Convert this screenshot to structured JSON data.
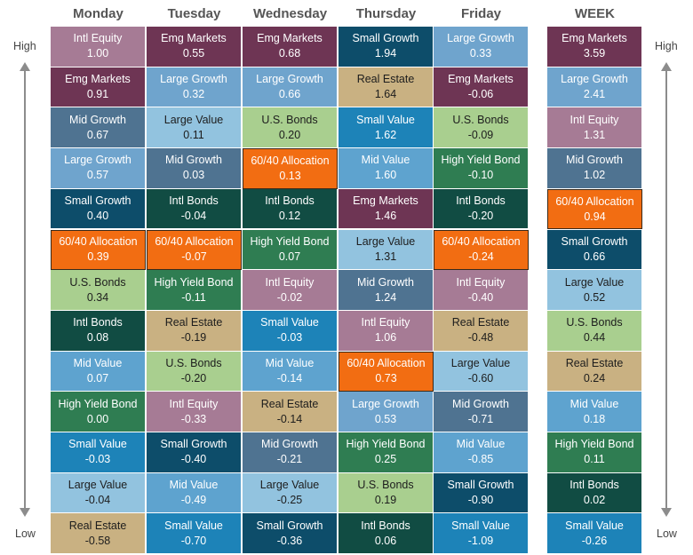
{
  "side": {
    "high": "High",
    "low": "Low"
  },
  "asset_colors": {
    "Intl Equity": "#a67b95",
    "Emg Markets": "#6e3554",
    "Mid Growth": "#4f7391",
    "Large Growth": "#6fa4cd",
    "Small Growth": "#0d4d6a",
    "60/40 Allocation": "#f26d12",
    "U.S. Bonds": "#a9cf8f",
    "Intl Bonds": "#114c43",
    "Mid Value": "#5ea3cf",
    "High Yield Bond": "#2f7d52",
    "Small Value": "#1d83b8",
    "Large Value": "#92c3df",
    "Real Estate": "#c9b182"
  },
  "chart_data": {
    "type": "table",
    "columns": [
      "Monday",
      "Tuesday",
      "Wednesday",
      "Thursday",
      "Friday",
      "WEEK"
    ],
    "rows": [
      [
        {
          "name": "Intl Equity",
          "value": "1.00"
        },
        {
          "name": "Emg Markets",
          "value": "0.55"
        },
        {
          "name": "Emg Markets",
          "value": "0.68"
        },
        {
          "name": "Small Growth",
          "value": "1.94"
        },
        {
          "name": "Large Growth",
          "value": "0.33"
        },
        {
          "name": "Emg Markets",
          "value": "3.59"
        }
      ],
      [
        {
          "name": "Emg Markets",
          "value": "0.91"
        },
        {
          "name": "Large Growth",
          "value": "0.32"
        },
        {
          "name": "Large Growth",
          "value": "0.66"
        },
        {
          "name": "Real Estate",
          "value": "1.64"
        },
        {
          "name": "Emg Markets",
          "value": "-0.06"
        },
        {
          "name": "Large Growth",
          "value": "2.41"
        }
      ],
      [
        {
          "name": "Mid Growth",
          "value": "0.67"
        },
        {
          "name": "Large Value",
          "value": "0.11"
        },
        {
          "name": "U.S. Bonds",
          "value": "0.20"
        },
        {
          "name": "Small Value",
          "value": "1.62"
        },
        {
          "name": "U.S. Bonds",
          "value": "-0.09"
        },
        {
          "name": "Intl Equity",
          "value": "1.31"
        }
      ],
      [
        {
          "name": "Large Growth",
          "value": "0.57"
        },
        {
          "name": "Mid Growth",
          "value": "0.03"
        },
        {
          "name": "60/40 Allocation",
          "value": "0.13"
        },
        {
          "name": "Mid Value",
          "value": "1.60"
        },
        {
          "name": "High Yield Bond",
          "value": "-0.10"
        },
        {
          "name": "Mid Growth",
          "value": "1.02"
        }
      ],
      [
        {
          "name": "Small Growth",
          "value": "0.40"
        },
        {
          "name": "Intl Bonds",
          "value": "-0.04"
        },
        {
          "name": "Intl Bonds",
          "value": "0.12"
        },
        {
          "name": "Emg Markets",
          "value": "1.46"
        },
        {
          "name": "Intl Bonds",
          "value": "-0.20"
        },
        {
          "name": "60/40 Allocation",
          "value": "0.94"
        }
      ],
      [
        {
          "name": "60/40 Allocation",
          "value": "0.39"
        },
        {
          "name": "60/40 Allocation",
          "value": "-0.07"
        },
        {
          "name": "High Yield Bond",
          "value": "0.07"
        },
        {
          "name": "Large Value",
          "value": "1.31"
        },
        {
          "name": "60/40 Allocation",
          "value": "-0.24"
        },
        {
          "name": "Small Growth",
          "value": "0.66"
        }
      ],
      [
        {
          "name": "U.S. Bonds",
          "value": "0.34"
        },
        {
          "name": "High Yield Bond",
          "value": "-0.11"
        },
        {
          "name": "Intl Equity",
          "value": "-0.02"
        },
        {
          "name": "Mid Growth",
          "value": "1.24"
        },
        {
          "name": "Intl Equity",
          "value": "-0.40"
        },
        {
          "name": "Large Value",
          "value": "0.52"
        }
      ],
      [
        {
          "name": "Intl Bonds",
          "value": "0.08"
        },
        {
          "name": "Real Estate",
          "value": "-0.19"
        },
        {
          "name": "Small Value",
          "value": "-0.03"
        },
        {
          "name": "Intl Equity",
          "value": "1.06"
        },
        {
          "name": "Real Estate",
          "value": "-0.48"
        },
        {
          "name": "U.S. Bonds",
          "value": "0.44"
        }
      ],
      [
        {
          "name": "Mid Value",
          "value": "0.07"
        },
        {
          "name": "U.S. Bonds",
          "value": "-0.20"
        },
        {
          "name": "Mid Value",
          "value": "-0.14"
        },
        {
          "name": "60/40 Allocation",
          "value": "0.73"
        },
        {
          "name": "Large Value",
          "value": "-0.60"
        },
        {
          "name": "Real Estate",
          "value": "0.24"
        }
      ],
      [
        {
          "name": "High Yield Bond",
          "value": "0.00"
        },
        {
          "name": "Intl Equity",
          "value": "-0.33"
        },
        {
          "name": "Real Estate",
          "value": "-0.14"
        },
        {
          "name": "Large Growth",
          "value": "0.53"
        },
        {
          "name": "Mid Growth",
          "value": "-0.71"
        },
        {
          "name": "Mid Value",
          "value": "0.18"
        }
      ],
      [
        {
          "name": "Small Value",
          "value": "-0.03"
        },
        {
          "name": "Small Growth",
          "value": "-0.40"
        },
        {
          "name": "Mid Growth",
          "value": "-0.21"
        },
        {
          "name": "High Yield Bond",
          "value": "0.25"
        },
        {
          "name": "Mid Value",
          "value": "-0.85"
        },
        {
          "name": "High Yield Bond",
          "value": "0.11"
        }
      ],
      [
        {
          "name": "Large Value",
          "value": "-0.04"
        },
        {
          "name": "Mid Value",
          "value": "-0.49"
        },
        {
          "name": "Large Value",
          "value": "-0.25"
        },
        {
          "name": "U.S. Bonds",
          "value": "0.19"
        },
        {
          "name": "Small Growth",
          "value": "-0.90"
        },
        {
          "name": "Intl Bonds",
          "value": "0.02"
        }
      ],
      [
        {
          "name": "Real Estate",
          "value": "-0.58"
        },
        {
          "name": "Small Value",
          "value": "-0.70"
        },
        {
          "name": "Small Growth",
          "value": "-0.36"
        },
        {
          "name": "Intl Bonds",
          "value": "0.06"
        },
        {
          "name": "Small Value",
          "value": "-1.09"
        },
        {
          "name": "Small Value",
          "value": "-0.26"
        }
      ]
    ],
    "highlighted_asset": "60/40 Allocation",
    "grid": false
  }
}
